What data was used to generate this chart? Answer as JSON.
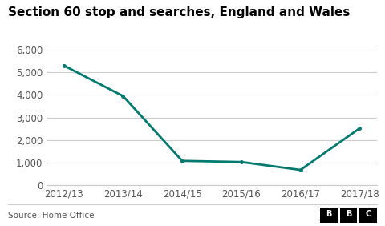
{
  "title": "Section 60 stop and searches, England and Wales",
  "categories": [
    "2012/13",
    "2013/14",
    "2014/15",
    "2015/16",
    "2016/17",
    "2017/18"
  ],
  "values": [
    5300,
    3950,
    1080,
    1030,
    680,
    2520
  ],
  "line_color": "#007a6e",
  "background_color": "#ffffff",
  "ylim": [
    0,
    6000
  ],
  "yticks": [
    0,
    1000,
    2000,
    3000,
    4000,
    5000,
    6000
  ],
  "ytick_labels": [
    "0",
    "1,000",
    "2,000",
    "3,000",
    "4,000",
    "5,000",
    "6,000"
  ],
  "source_text": "Source: Home Office",
  "title_fontsize": 11,
  "tick_fontsize": 8.5,
  "source_fontsize": 7.5,
  "line_width": 2.0,
  "grid_color": "#cccccc",
  "bbc_logo_text": "BBC",
  "text_color": "#555555"
}
